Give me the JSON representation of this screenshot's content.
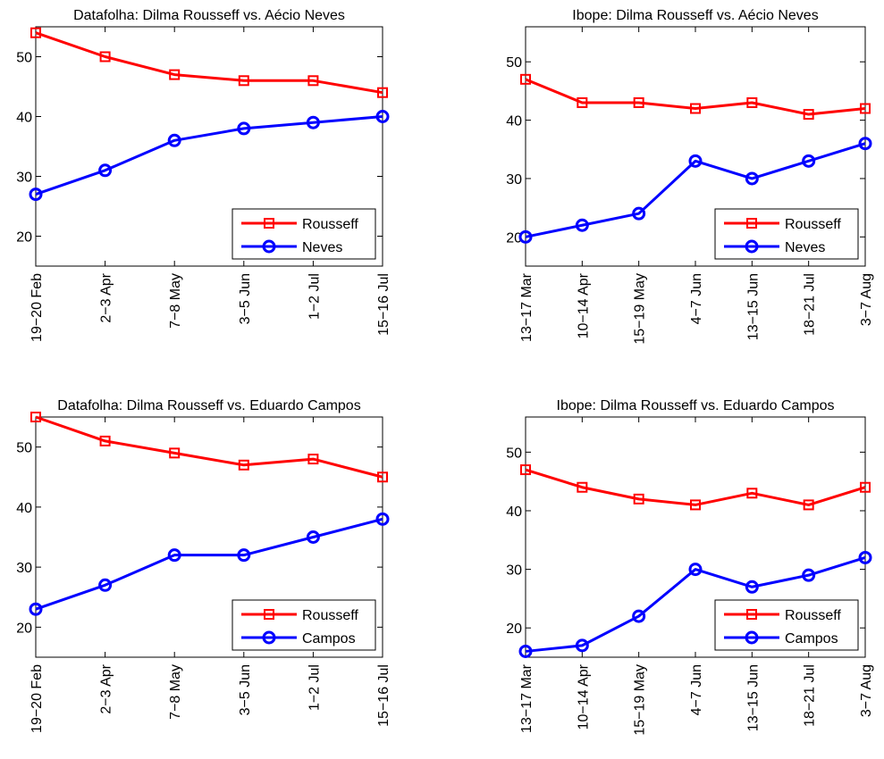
{
  "chart_data": [
    {
      "type": "line",
      "title": "Datafolha: Dilma Rousseff vs. Aécio Neves",
      "categories": [
        "19−20 Feb",
        "2−3 Apr",
        "7−8 May",
        "3−5 Jun",
        "1−2 Jul",
        "15−16 Jul"
      ],
      "series": [
        {
          "name": "Rousseff",
          "values": [
            54,
            50,
            47,
            46,
            46,
            44
          ],
          "color": "#ff0000",
          "marker": "square"
        },
        {
          "name": "Neves",
          "values": [
            27,
            31,
            36,
            38,
            39,
            40
          ],
          "color": "#0000ff",
          "marker": "circle"
        }
      ],
      "yticks": [
        20,
        30,
        40,
        50
      ],
      "ylim": [
        15,
        55
      ],
      "legend": "bottom-right",
      "grid": false
    },
    {
      "type": "line",
      "title": "Ibope: Dilma Rousseff vs. Aécio Neves",
      "categories": [
        "13−17 Mar",
        "10−14 Apr",
        "15−19 May",
        "4−7 Jun",
        "13−15 Jun",
        "18−21 Jul",
        "3−7 Aug"
      ],
      "series": [
        {
          "name": "Rousseff",
          "values": [
            47,
            43,
            43,
            42,
            43,
            41,
            42
          ],
          "color": "#ff0000",
          "marker": "square"
        },
        {
          "name": "Neves",
          "values": [
            20,
            22,
            24,
            33,
            30,
            33,
            36
          ],
          "color": "#0000ff",
          "marker": "circle"
        }
      ],
      "yticks": [
        20,
        30,
        40,
        50
      ],
      "ylim": [
        15,
        56
      ],
      "legend": "bottom-right",
      "grid": false
    },
    {
      "type": "line",
      "title": "Datafolha: Dilma Rousseff vs. Eduardo Campos",
      "categories": [
        "19−20 Feb",
        "2−3 Apr",
        "7−8 May",
        "3−5 Jun",
        "1−2 Jul",
        "15−16 Jul"
      ],
      "series": [
        {
          "name": "Rousseff",
          "values": [
            55,
            51,
            49,
            47,
            48,
            45
          ],
          "color": "#ff0000",
          "marker": "square"
        },
        {
          "name": "Campos",
          "values": [
            23,
            27,
            32,
            32,
            35,
            38
          ],
          "color": "#0000ff",
          "marker": "circle"
        }
      ],
      "yticks": [
        20,
        30,
        40,
        50
      ],
      "ylim": [
        15,
        55
      ],
      "legend": "bottom-right",
      "grid": false
    },
    {
      "type": "line",
      "title": "Ibope: Dilma Rousseff vs. Eduardo Campos",
      "categories": [
        "13−17 Mar",
        "10−14 Apr",
        "15−19 May",
        "4−7 Jun",
        "13−15 Jun",
        "18−21 Jul",
        "3−7 Aug"
      ],
      "series": [
        {
          "name": "Rousseff",
          "values": [
            47,
            44,
            42,
            41,
            43,
            41,
            44
          ],
          "color": "#ff0000",
          "marker": "square"
        },
        {
          "name": "Campos",
          "values": [
            16,
            17,
            22,
            30,
            27,
            29,
            32
          ],
          "color": "#0000ff",
          "marker": "circle"
        }
      ],
      "yticks": [
        20,
        30,
        40,
        50
      ],
      "ylim": [
        15,
        56
      ],
      "legend": "bottom-right",
      "grid": false
    }
  ]
}
